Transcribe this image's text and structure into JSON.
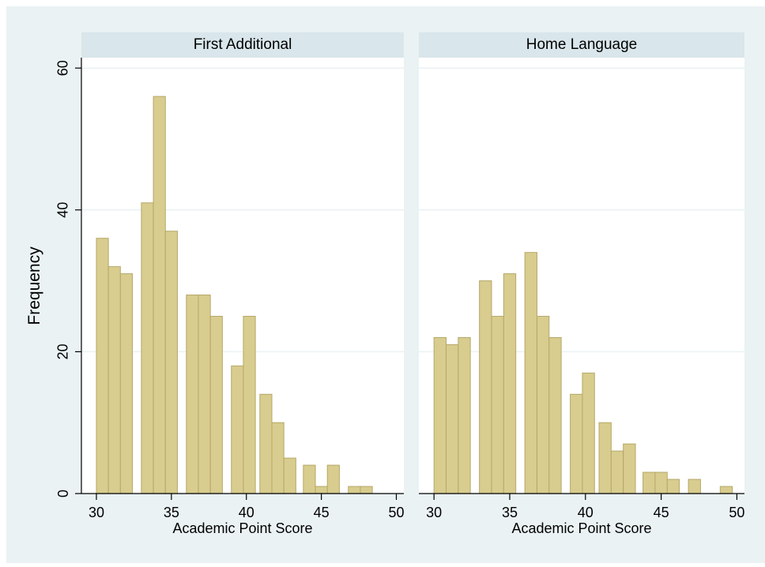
{
  "colors": {
    "outer_background": "#eaf2f3",
    "plot_background": "#ffffff",
    "strip_background": "#d9e6eb",
    "bar_fill": "#d8cc8e",
    "bar_stroke": "#b5a86a",
    "gridline": "#eaf2f3",
    "axis": "#000000"
  },
  "chart_data": {
    "type": "bar",
    "layout": "faceted-histogram",
    "ylabel": "Frequency",
    "xlim": [
      29,
      50.5
    ],
    "ylim": [
      0,
      61
    ],
    "x_ticks": [
      "30",
      "35",
      "40",
      "45",
      "50"
    ],
    "y_ticks": [
      "0",
      "20",
      "40",
      "60"
    ],
    "y_tick_values": [
      0,
      20,
      40,
      60
    ],
    "grid": true,
    "bin_width": 0.8,
    "panels": [
      {
        "title": "First Additional",
        "xlabel": "Academic Point Score",
        "bins": [
          {
            "x": 30.0,
            "count": 36
          },
          {
            "x": 30.8,
            "count": 32
          },
          {
            "x": 31.6,
            "count": 31
          },
          {
            "x": 33.0,
            "count": 41
          },
          {
            "x": 33.8,
            "count": 56
          },
          {
            "x": 34.6,
            "count": 37
          },
          {
            "x": 36.0,
            "count": 28
          },
          {
            "x": 36.8,
            "count": 28
          },
          {
            "x": 37.6,
            "count": 25
          },
          {
            "x": 39.0,
            "count": 18
          },
          {
            "x": 39.8,
            "count": 25
          },
          {
            "x": 40.9,
            "count": 14
          },
          {
            "x": 41.7,
            "count": 10
          },
          {
            "x": 42.5,
            "count": 5
          },
          {
            "x": 43.8,
            "count": 4
          },
          {
            "x": 44.6,
            "count": 1
          },
          {
            "x": 45.4,
            "count": 4
          },
          {
            "x": 46.8,
            "count": 1
          },
          {
            "x": 47.6,
            "count": 1
          }
        ]
      },
      {
        "title": "Home Language",
        "xlabel": "Academic Point Score",
        "bins": [
          {
            "x": 30.0,
            "count": 22
          },
          {
            "x": 30.8,
            "count": 21
          },
          {
            "x": 31.6,
            "count": 22
          },
          {
            "x": 33.0,
            "count": 30
          },
          {
            "x": 33.8,
            "count": 25
          },
          {
            "x": 34.6,
            "count": 31
          },
          {
            "x": 36.0,
            "count": 34
          },
          {
            "x": 36.8,
            "count": 25
          },
          {
            "x": 37.6,
            "count": 22
          },
          {
            "x": 39.0,
            "count": 14
          },
          {
            "x": 39.8,
            "count": 17
          },
          {
            "x": 40.9,
            "count": 10
          },
          {
            "x": 41.7,
            "count": 6
          },
          {
            "x": 42.5,
            "count": 7
          },
          {
            "x": 43.8,
            "count": 3
          },
          {
            "x": 44.6,
            "count": 3
          },
          {
            "x": 45.4,
            "count": 2
          },
          {
            "x": 46.8,
            "count": 2
          },
          {
            "x": 48.9,
            "count": 1
          }
        ]
      }
    ]
  }
}
